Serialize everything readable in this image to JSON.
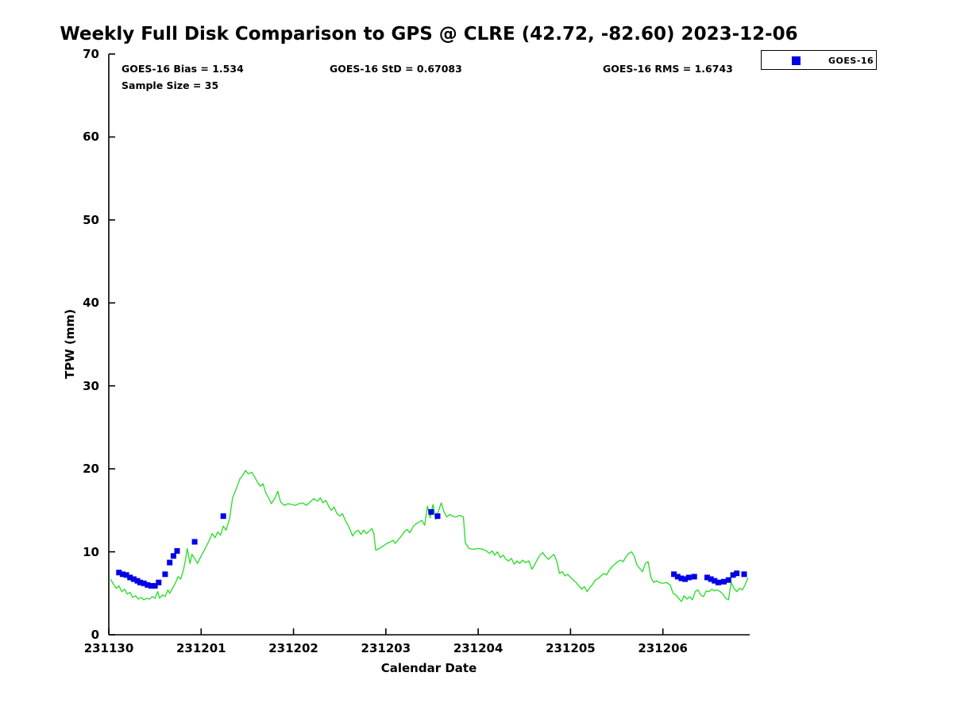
{
  "figure": {
    "title": "Weekly Full Disk Comparison to GPS @ CLRE (42.72, -82.60) 2023-12-06",
    "stats": {
      "bias": "GOES-16 Bias = 1.534",
      "std": "GOES-16 StD = 0.67083",
      "rms": "GOES-16 RMS = 1.6743",
      "sample_size": "Sample Size = 35"
    },
    "legend": {
      "position": "top-right-outside",
      "entries": [
        {
          "label": "GOES-16",
          "marker": "square",
          "color": "#0000e6"
        }
      ]
    }
  },
  "chart_data": {
    "type": "line",
    "title": "Weekly Full Disk Comparison to GPS @ CLRE (42.72, -82.60) 2023-12-06",
    "xlabel": "Calendar Date",
    "ylabel": "TPW (mm)",
    "grid": false,
    "ylim": [
      0,
      70
    ],
    "y_ticks": [
      0,
      10,
      20,
      30,
      40,
      50,
      60,
      70
    ],
    "x_tick_labels": [
      "231130",
      "231201",
      "231202",
      "231203",
      "231204",
      "231205",
      "231206"
    ],
    "x_tick_days": [
      0,
      1,
      2,
      3,
      4,
      5,
      6
    ],
    "xlim_days": [
      0,
      6.94
    ],
    "axis_color": "#000000",
    "series": [
      {
        "name": "GPS",
        "type": "line",
        "color": "#22dd22",
        "points": [
          [
            0.02,
            6.7
          ],
          [
            0.05,
            6.1
          ],
          [
            0.08,
            5.6
          ],
          [
            0.11,
            5.9
          ],
          [
            0.14,
            5.2
          ],
          [
            0.17,
            5.5
          ],
          [
            0.2,
            4.9
          ],
          [
            0.23,
            5.1
          ],
          [
            0.26,
            4.5
          ],
          [
            0.29,
            4.7
          ],
          [
            0.32,
            4.3
          ],
          [
            0.35,
            4.5
          ],
          [
            0.38,
            4.2
          ],
          [
            0.41,
            4.4
          ],
          [
            0.44,
            4.3
          ],
          [
            0.47,
            4.6
          ],
          [
            0.5,
            4.4
          ],
          [
            0.53,
            5.2
          ],
          [
            0.55,
            4.4
          ],
          [
            0.58,
            4.8
          ],
          [
            0.61,
            4.6
          ],
          [
            0.64,
            5.4
          ],
          [
            0.66,
            5.0
          ],
          [
            0.69,
            5.6
          ],
          [
            0.72,
            6.2
          ],
          [
            0.75,
            7.0
          ],
          [
            0.78,
            6.7
          ],
          [
            0.81,
            7.9
          ],
          [
            0.83,
            9.0
          ],
          [
            0.85,
            10.4
          ],
          [
            0.88,
            8.6
          ],
          [
            0.9,
            9.7
          ],
          [
            0.93,
            9.2
          ],
          [
            0.96,
            8.6
          ],
          [
            1.0,
            9.5
          ],
          [
            1.04,
            10.3
          ],
          [
            1.08,
            11.2
          ],
          [
            1.12,
            12.2
          ],
          [
            1.15,
            11.7
          ],
          [
            1.18,
            12.4
          ],
          [
            1.21,
            12.0
          ],
          [
            1.24,
            13.1
          ],
          [
            1.27,
            12.6
          ],
          [
            1.31,
            14.1
          ],
          [
            1.34,
            16.5
          ],
          [
            1.38,
            17.6
          ],
          [
            1.42,
            18.8
          ],
          [
            1.45,
            19.2
          ],
          [
            1.48,
            19.8
          ],
          [
            1.51,
            19.4
          ],
          [
            1.55,
            19.6
          ],
          [
            1.58,
            19.0
          ],
          [
            1.61,
            18.4
          ],
          [
            1.64,
            17.9
          ],
          [
            1.67,
            18.2
          ],
          [
            1.7,
            17.1
          ],
          [
            1.73,
            16.5
          ],
          [
            1.76,
            15.8
          ],
          [
            1.8,
            16.5
          ],
          [
            1.83,
            17.3
          ],
          [
            1.86,
            16.0
          ],
          [
            1.9,
            15.6
          ],
          [
            1.94,
            15.8
          ],
          [
            1.98,
            15.7
          ],
          [
            2.02,
            15.6
          ],
          [
            2.06,
            15.8
          ],
          [
            2.1,
            15.9
          ],
          [
            2.14,
            15.6
          ],
          [
            2.18,
            16.0
          ],
          [
            2.22,
            16.4
          ],
          [
            2.26,
            16.1
          ],
          [
            2.29,
            16.5
          ],
          [
            2.32,
            15.9
          ],
          [
            2.35,
            16.2
          ],
          [
            2.38,
            15.5
          ],
          [
            2.41,
            15.0
          ],
          [
            2.44,
            15.4
          ],
          [
            2.47,
            14.6
          ],
          [
            2.5,
            14.3
          ],
          [
            2.53,
            14.6
          ],
          [
            2.56,
            13.8
          ],
          [
            2.6,
            13.0
          ],
          [
            2.64,
            11.9
          ],
          [
            2.67,
            12.4
          ],
          [
            2.7,
            12.6
          ],
          [
            2.73,
            12.1
          ],
          [
            2.76,
            12.6
          ],
          [
            2.79,
            12.2
          ],
          [
            2.82,
            12.5
          ],
          [
            2.85,
            12.8
          ],
          [
            2.87,
            12.2
          ],
          [
            2.89,
            10.2
          ],
          [
            2.93,
            10.4
          ],
          [
            2.97,
            10.7
          ],
          [
            3.01,
            11.0
          ],
          [
            3.05,
            11.2
          ],
          [
            3.08,
            11.4
          ],
          [
            3.1,
            11.0
          ],
          [
            3.13,
            11.4
          ],
          [
            3.16,
            11.8
          ],
          [
            3.2,
            12.4
          ],
          [
            3.23,
            12.7
          ],
          [
            3.26,
            12.3
          ],
          [
            3.3,
            13.1
          ],
          [
            3.33,
            13.4
          ],
          [
            3.36,
            13.6
          ],
          [
            3.39,
            13.8
          ],
          [
            3.42,
            13.2
          ],
          [
            3.45,
            15.5
          ],
          [
            3.48,
            14.1
          ],
          [
            3.51,
            15.7
          ],
          [
            3.54,
            13.9
          ],
          [
            3.57,
            14.9
          ],
          [
            3.6,
            15.9
          ],
          [
            3.63,
            14.8
          ],
          [
            3.66,
            14.2
          ],
          [
            3.69,
            14.5
          ],
          [
            3.72,
            14.3
          ],
          [
            3.76,
            14.2
          ],
          [
            3.8,
            14.4
          ],
          [
            3.84,
            14.2
          ],
          [
            3.86,
            11.1
          ],
          [
            3.9,
            10.4
          ],
          [
            3.95,
            10.3
          ],
          [
            4.0,
            10.4
          ],
          [
            4.05,
            10.3
          ],
          [
            4.09,
            10.1
          ],
          [
            4.12,
            9.8
          ],
          [
            4.15,
            10.1
          ],
          [
            4.18,
            9.6
          ],
          [
            4.21,
            10.0
          ],
          [
            4.24,
            9.3
          ],
          [
            4.27,
            9.6
          ],
          [
            4.3,
            9.1
          ],
          [
            4.33,
            8.9
          ],
          [
            4.36,
            9.2
          ],
          [
            4.39,
            8.5
          ],
          [
            4.42,
            8.9
          ],
          [
            4.45,
            8.6
          ],
          [
            4.48,
            9.0
          ],
          [
            4.51,
            8.7
          ],
          [
            4.55,
            8.9
          ],
          [
            4.58,
            7.9
          ],
          [
            4.61,
            8.4
          ],
          [
            4.64,
            9.1
          ],
          [
            4.67,
            9.6
          ],
          [
            4.7,
            9.9
          ],
          [
            4.73,
            9.4
          ],
          [
            4.76,
            9.1
          ],
          [
            4.79,
            9.4
          ],
          [
            4.82,
            9.7
          ],
          [
            4.85,
            8.9
          ],
          [
            4.88,
            7.4
          ],
          [
            4.91,
            7.6
          ],
          [
            4.94,
            7.1
          ],
          [
            4.97,
            7.3
          ],
          [
            5.0,
            6.9
          ],
          [
            5.03,
            6.6
          ],
          [
            5.06,
            6.3
          ],
          [
            5.09,
            5.9
          ],
          [
            5.12,
            5.5
          ],
          [
            5.15,
            5.8
          ],
          [
            5.18,
            5.2
          ],
          [
            5.21,
            5.7
          ],
          [
            5.24,
            6.1
          ],
          [
            5.27,
            6.6
          ],
          [
            5.3,
            6.8
          ],
          [
            5.33,
            7.1
          ],
          [
            5.36,
            7.4
          ],
          [
            5.39,
            7.2
          ],
          [
            5.42,
            7.8
          ],
          [
            5.45,
            8.2
          ],
          [
            5.48,
            8.5
          ],
          [
            5.51,
            8.8
          ],
          [
            5.54,
            9.0
          ],
          [
            5.57,
            8.8
          ],
          [
            5.6,
            9.4
          ],
          [
            5.63,
            9.8
          ],
          [
            5.66,
            10.0
          ],
          [
            5.69,
            9.5
          ],
          [
            5.72,
            8.4
          ],
          [
            5.75,
            8.0
          ],
          [
            5.78,
            7.6
          ],
          [
            5.81,
            8.6
          ],
          [
            5.84,
            8.8
          ],
          [
            5.87,
            6.9
          ],
          [
            5.9,
            6.3
          ],
          [
            5.93,
            6.5
          ],
          [
            5.96,
            6.3
          ],
          [
            6.0,
            6.2
          ],
          [
            6.04,
            6.3
          ],
          [
            6.08,
            6.0
          ],
          [
            6.11,
            5.0
          ],
          [
            6.14,
            4.8
          ],
          [
            6.17,
            4.4
          ],
          [
            6.2,
            4.0
          ],
          [
            6.23,
            4.7
          ],
          [
            6.26,
            4.3
          ],
          [
            6.29,
            4.6
          ],
          [
            6.32,
            4.2
          ],
          [
            6.35,
            5.2
          ],
          [
            6.38,
            5.4
          ],
          [
            6.41,
            4.8
          ],
          [
            6.44,
            4.6
          ],
          [
            6.47,
            5.3
          ],
          [
            6.5,
            5.2
          ],
          [
            6.53,
            5.5
          ],
          [
            6.56,
            5.3
          ],
          [
            6.59,
            5.4
          ],
          [
            6.62,
            5.2
          ],
          [
            6.65,
            4.9
          ],
          [
            6.68,
            4.4
          ],
          [
            6.71,
            4.2
          ],
          [
            6.74,
            6.3
          ],
          [
            6.77,
            5.6
          ],
          [
            6.8,
            5.2
          ],
          [
            6.83,
            5.6
          ],
          [
            6.86,
            5.4
          ],
          [
            6.89,
            6.0
          ],
          [
            6.92,
            6.9
          ]
        ]
      },
      {
        "name": "GOES-16",
        "type": "scatter",
        "marker": "square",
        "marker_size": 7,
        "color": "#0000e6",
        "points": [
          [
            0.11,
            7.5
          ],
          [
            0.15,
            7.3
          ],
          [
            0.19,
            7.2
          ],
          [
            0.23,
            6.9
          ],
          [
            0.27,
            6.7
          ],
          [
            0.31,
            6.5
          ],
          [
            0.34,
            6.3
          ],
          [
            0.38,
            6.2
          ],
          [
            0.42,
            6.0
          ],
          [
            0.46,
            5.9
          ],
          [
            0.5,
            5.9
          ],
          [
            0.54,
            6.3
          ],
          [
            0.61,
            7.3
          ],
          [
            0.66,
            8.7
          ],
          [
            0.7,
            9.5
          ],
          [
            0.74,
            10.1
          ],
          [
            0.93,
            11.2
          ],
          [
            1.24,
            14.3
          ],
          [
            3.49,
            14.8
          ],
          [
            3.56,
            14.3
          ],
          [
            6.12,
            7.3
          ],
          [
            6.16,
            7.0
          ],
          [
            6.2,
            6.8
          ],
          [
            6.24,
            6.7
          ],
          [
            6.28,
            6.9
          ],
          [
            6.34,
            7.0
          ],
          [
            6.48,
            6.9
          ],
          [
            6.52,
            6.7
          ],
          [
            6.56,
            6.5
          ],
          [
            6.6,
            6.3
          ],
          [
            6.66,
            6.4
          ],
          [
            6.71,
            6.6
          ],
          [
            6.76,
            7.2
          ],
          [
            6.8,
            7.4
          ],
          [
            6.88,
            7.3
          ]
        ]
      }
    ]
  }
}
